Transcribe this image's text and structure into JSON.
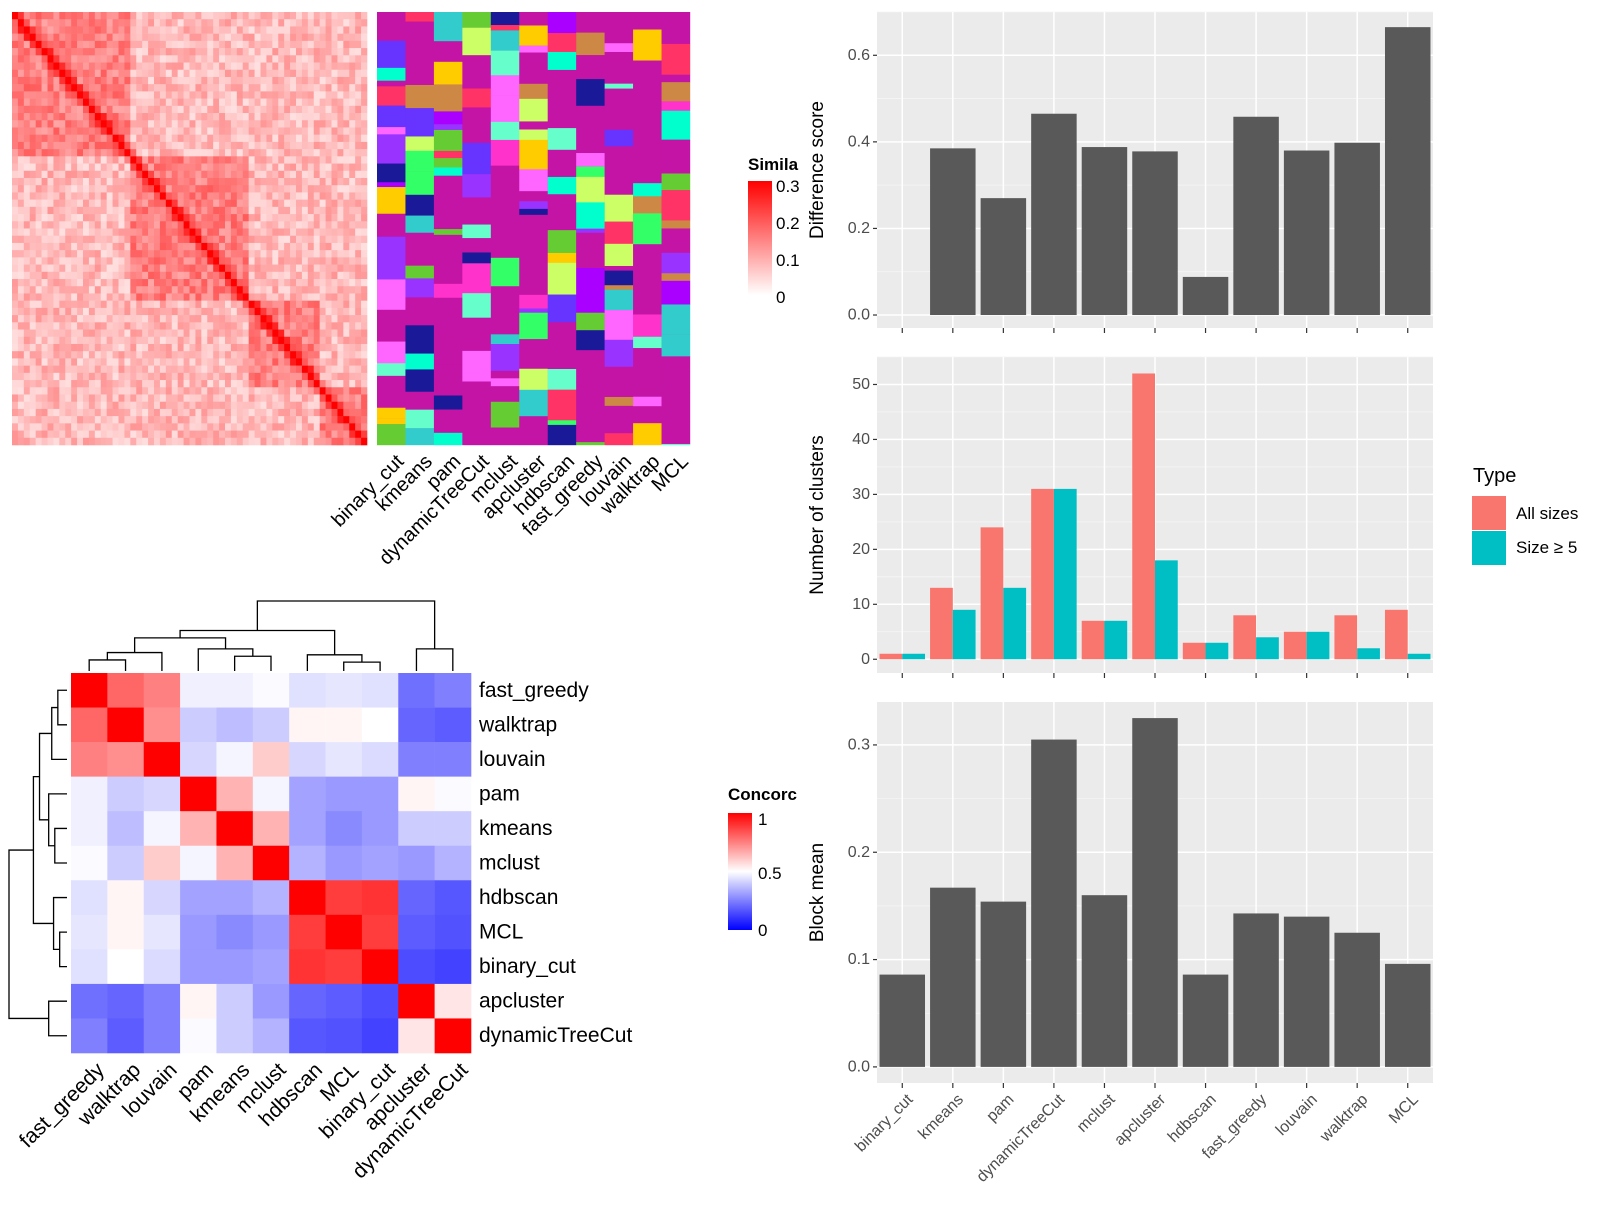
{
  "colors": {
    "panel_bg": "#ebebeb",
    "bar_fill": "#595959",
    "all_sizes": "#f8766d",
    "size_ge5": "#00bfc4",
    "heat_high": "#ff0000",
    "heat_mid": "#ffffff",
    "heat_low": "#0000ff",
    "annotation_base": "#c414a5"
  },
  "similarity_legend": {
    "title": "Simila",
    "ticks": [
      "0.3",
      "0.2",
      "0.1",
      "0"
    ]
  },
  "concordance_legend": {
    "title": "Concorc",
    "ticks": [
      "1",
      "0.5",
      "0"
    ]
  },
  "type_legend": {
    "title": "Type",
    "items": [
      "All sizes",
      "Size ≥ 5"
    ]
  },
  "chart_data": [
    {
      "type": "heatmap",
      "title": "",
      "description": "cell-by-cell similarity matrix with cluster annotation columns",
      "annotation_columns": [
        "binary_cut",
        "kmeans",
        "pam",
        "dynamicTreeCut",
        "mclust",
        "apcluster",
        "hdbscan",
        "fast_greedy",
        "louvain",
        "walktrap",
        "MCL"
      ],
      "legend_ticks": [
        0,
        0.1,
        0.2,
        0.3
      ]
    },
    {
      "type": "heatmap",
      "title": "",
      "rows": [
        "fast_greedy",
        "walktrap",
        "louvain",
        "pam",
        "kmeans",
        "mclust",
        "hdbscan",
        "MCL",
        "binary_cut",
        "apcluster",
        "dynamicTreeCut"
      ],
      "columns": [
        "fast_greedy",
        "walktrap",
        "louvain",
        "pam",
        "kmeans",
        "mclust",
        "hdbscan",
        "MCL",
        "binary_cut",
        "apcluster",
        "dynamicTreeCut"
      ],
      "values": [
        [
          1.0,
          0.8,
          0.75,
          0.47,
          0.47,
          0.49,
          0.44,
          0.45,
          0.44,
          0.22,
          0.25
        ],
        [
          0.8,
          1.0,
          0.72,
          0.4,
          0.37,
          0.4,
          0.52,
          0.52,
          0.5,
          0.2,
          0.18
        ],
        [
          0.75,
          0.72,
          1.0,
          0.42,
          0.48,
          0.6,
          0.42,
          0.45,
          0.43,
          0.25,
          0.25
        ],
        [
          0.47,
          0.4,
          0.42,
          1.0,
          0.65,
          0.48,
          0.32,
          0.3,
          0.3,
          0.52,
          0.49
        ],
        [
          0.47,
          0.37,
          0.48,
          0.65,
          1.0,
          0.65,
          0.32,
          0.27,
          0.3,
          0.4,
          0.4
        ],
        [
          0.49,
          0.4,
          0.6,
          0.48,
          0.65,
          1.0,
          0.35,
          0.3,
          0.32,
          0.3,
          0.35
        ],
        [
          0.44,
          0.52,
          0.42,
          0.32,
          0.32,
          0.35,
          1.0,
          0.88,
          0.9,
          0.2,
          0.17
        ],
        [
          0.45,
          0.52,
          0.45,
          0.3,
          0.27,
          0.3,
          0.88,
          1.0,
          0.88,
          0.18,
          0.16
        ],
        [
          0.44,
          0.5,
          0.43,
          0.3,
          0.3,
          0.32,
          0.9,
          0.88,
          1.0,
          0.15,
          0.13
        ],
        [
          0.22,
          0.2,
          0.25,
          0.52,
          0.4,
          0.3,
          0.2,
          0.18,
          0.15,
          1.0,
          0.55
        ],
        [
          0.25,
          0.18,
          0.25,
          0.49,
          0.4,
          0.35,
          0.17,
          0.16,
          0.13,
          0.55,
          1.0
        ]
      ],
      "legend_ticks": [
        0,
        0.5,
        1
      ]
    },
    {
      "type": "bar",
      "title": "",
      "xlabel": "",
      "ylabel": "Difference score",
      "categories": [
        "binary_cut",
        "kmeans",
        "pam",
        "dynamicTreeCut",
        "mclust",
        "apcluster",
        "hdbscan",
        "fast_greedy",
        "louvain",
        "walktrap",
        "MCL"
      ],
      "values": [
        0,
        0.385,
        0.27,
        0.465,
        0.388,
        0.378,
        0.088,
        0.458,
        0.38,
        0.398,
        0.665
      ],
      "ylim": [
        -0.03,
        0.7
      ],
      "yticks": [
        "0.0",
        "0.2",
        "0.4",
        "0.6"
      ]
    },
    {
      "type": "bar",
      "title": "",
      "xlabel": "",
      "ylabel": "Number of clusters",
      "categories": [
        "binary_cut",
        "kmeans",
        "pam",
        "dynamicTreeCut",
        "mclust",
        "apcluster",
        "hdbscan",
        "fast_greedy",
        "louvain",
        "walktrap",
        "MCL"
      ],
      "series": [
        {
          "name": "All sizes",
          "values": [
            1,
            13,
            24,
            31,
            7,
            52,
            3,
            8,
            5,
            8,
            9
          ]
        },
        {
          "name": "Size ≥ 5",
          "values": [
            1,
            9,
            13,
            31,
            7,
            18,
            3,
            4,
            5,
            2,
            1
          ]
        }
      ],
      "ylim": [
        -2.5,
        55
      ],
      "yticks": [
        "0",
        "10",
        "20",
        "30",
        "40",
        "50"
      ],
      "legend": "right"
    },
    {
      "type": "bar",
      "title": "",
      "xlabel": "",
      "ylabel": "Block mean",
      "categories": [
        "binary_cut",
        "kmeans",
        "pam",
        "dynamicTreeCut",
        "mclust",
        "apcluster",
        "hdbscan",
        "fast_greedy",
        "louvain",
        "walktrap",
        "MCL"
      ],
      "values": [
        0.086,
        0.167,
        0.154,
        0.305,
        0.16,
        0.325,
        0.086,
        0.143,
        0.14,
        0.125,
        0.096
      ],
      "ylim": [
        -0.015,
        0.34
      ],
      "yticks": [
        "0.0",
        "0.1",
        "0.2",
        "0.3"
      ]
    }
  ]
}
